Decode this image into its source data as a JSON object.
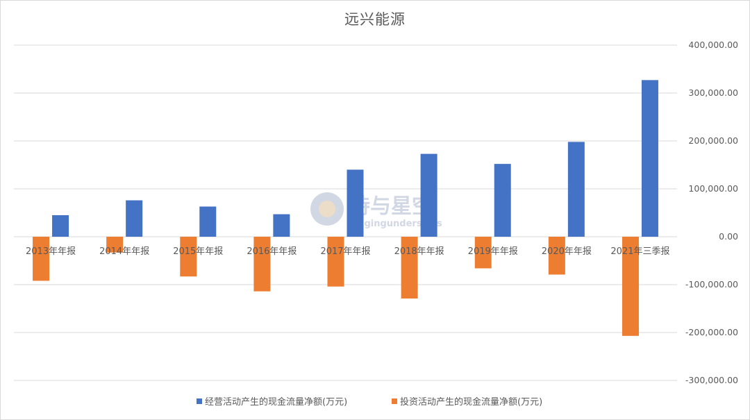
{
  "chart_data": {
    "type": "bar",
    "title": "远兴能源",
    "categories": [
      "2013年年报",
      "2014年年报",
      "2015年年报",
      "2016年年报",
      "2017年年报",
      "2018年年报",
      "2019年年报",
      "2020年年报",
      "2021年三季报"
    ],
    "series": [
      {
        "name": "经营活动产生的现金流量净额(万元)",
        "color": "#4472c4",
        "values": [
          45000,
          76000,
          63000,
          47000,
          140000,
          173000,
          152000,
          198000,
          327000
        ]
      },
      {
        "name": "投资活动产生的现金流量净额(万元)",
        "color": "#ed7d31",
        "values": [
          -92000,
          -33000,
          -83000,
          -114000,
          -104000,
          -129000,
          -66000,
          -79000,
          -207000
        ]
      }
    ],
    "yaxis": {
      "min": -300000,
      "max": 400000,
      "ticks": [
        400000,
        300000,
        200000,
        100000,
        0,
        -100000,
        -200000,
        -300000
      ],
      "tick_labels": [
        "400,000.00",
        "300,000.00",
        "200,000.00",
        "100,000.00",
        "0.00",
        "-100,000.00",
        "-200,000.00",
        "-300,000.00"
      ],
      "position": "right"
    },
    "grid": true,
    "legend": "bottom",
    "gridline_color": "#d9d9d9"
  },
  "watermark": {
    "text": "诗与星空",
    "subtext": "singingunderstars"
  }
}
